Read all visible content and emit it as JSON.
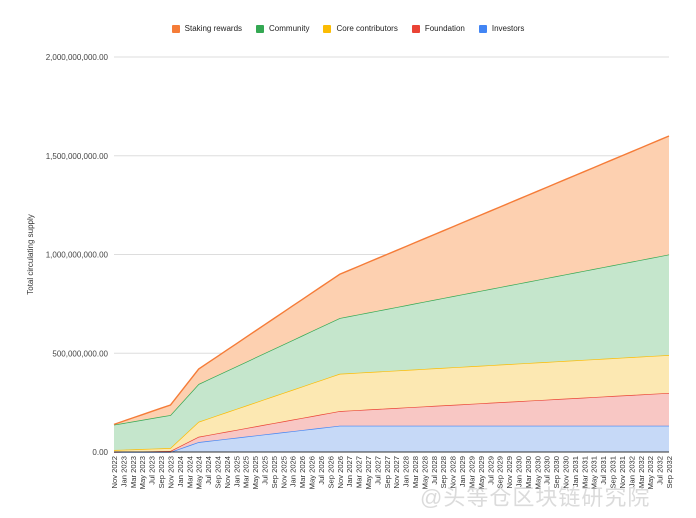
{
  "chart_data": {
    "type": "area",
    "stacked": true,
    "title": "",
    "xlabel": "",
    "ylabel": "Total circulating supply",
    "ylim": [
      0,
      2000000000
    ],
    "yticks": [
      0,
      500000000,
      1000000000,
      1500000000,
      2000000000
    ],
    "ytick_labels": [
      "0.00",
      "500,000,000.00",
      "1,000,000,000.00",
      "1,500,000,000.00",
      "2,000,000,000.00"
    ],
    "grid": true,
    "legend_position": "top",
    "categories": [
      "Nov 2022",
      "Jan 2023",
      "Mar 2023",
      "May 2023",
      "Jul 2023",
      "Sep 2023",
      "Nov 2023",
      "Jan 2024",
      "Mar 2024",
      "May 2024",
      "Jul 2024",
      "Sep 2024",
      "Nov 2024",
      "Jan 2025",
      "Mar 2025",
      "May 2025",
      "Jul 2025",
      "Sep 2025",
      "Nov 2025",
      "Jan 2026",
      "Mar 2026",
      "May 2026",
      "Jul 2026",
      "Sep 2026",
      "Nov 2026",
      "Jan 2027",
      "Mar 2027",
      "May 2027",
      "Jul 2027",
      "Sep 2027",
      "Nov 2027",
      "Jan 2028",
      "Mar 2028",
      "May 2028",
      "Jul 2028",
      "Sep 2028",
      "Nov 2028",
      "Jan 2029",
      "Mar 2029",
      "May 2029",
      "Jul 2029",
      "Sep 2029",
      "Nov 2029",
      "Jan 2030",
      "Mar 2030",
      "May 2030",
      "Jul 2030",
      "Sep 2030",
      "Nov 2030",
      "Jan 2031",
      "Mar 2031",
      "May 2031",
      "Jul 2031",
      "Sep 2031",
      "Nov 2031",
      "Jan 2032",
      "Mar 2032",
      "May 2032",
      "Jul 2032",
      "Sep 2032"
    ],
    "series_note": "values given at breakpoints (category, value), linear between",
    "series": [
      {
        "name": "Investors",
        "color": "#4285f4",
        "fill": "#c6d9f7",
        "points": [
          [
            "Nov 2022",
            0
          ],
          [
            "Nov 2023",
            0
          ],
          [
            "May 2024",
            50000000
          ],
          [
            "Nov 2026",
            133000000
          ],
          [
            "Sep 2032",
            133000000
          ]
        ]
      },
      {
        "name": "Foundation",
        "color": "#ea4335",
        "fill": "#f8c7c4",
        "points": [
          [
            "Nov 2022",
            0
          ],
          [
            "Nov 2023",
            5000000
          ],
          [
            "May 2024",
            27000000
          ],
          [
            "Nov 2026",
            74000000
          ],
          [
            "Sep 2032",
            166000000
          ]
        ]
      },
      {
        "name": "Core contributors",
        "color": "#fbbc04",
        "fill": "#fce8b2",
        "points": [
          [
            "Nov 2022",
            10000000
          ],
          [
            "Nov 2023",
            15000000
          ],
          [
            "May 2024",
            76000000
          ],
          [
            "Nov 2026",
            189000000
          ],
          [
            "Sep 2032",
            192000000
          ]
        ]
      },
      {
        "name": "Community",
        "color": "#34a853",
        "fill": "#c5e6cc",
        "points": [
          [
            "Nov 2022",
            128000000
          ],
          [
            "Nov 2023",
            167000000
          ],
          [
            "May 2024",
            191000000
          ],
          [
            "Nov 2026",
            282000000
          ],
          [
            "Sep 2032",
            509000000
          ]
        ]
      },
      {
        "name": "Staking rewards",
        "color": "#f57c38",
        "fill": "#fdd0b0",
        "points": [
          [
            "Nov 2022",
            2000000
          ],
          [
            "Nov 2023",
            51000000
          ],
          [
            "May 2024",
            76000000
          ],
          [
            "Nov 2026",
            222000000
          ],
          [
            "Sep 2032",
            600000000
          ]
        ]
      }
    ],
    "legend_order": [
      "Staking rewards",
      "Community",
      "Core contributors",
      "Foundation",
      "Investors"
    ]
  },
  "watermark": "@头等仓区块链研究院"
}
